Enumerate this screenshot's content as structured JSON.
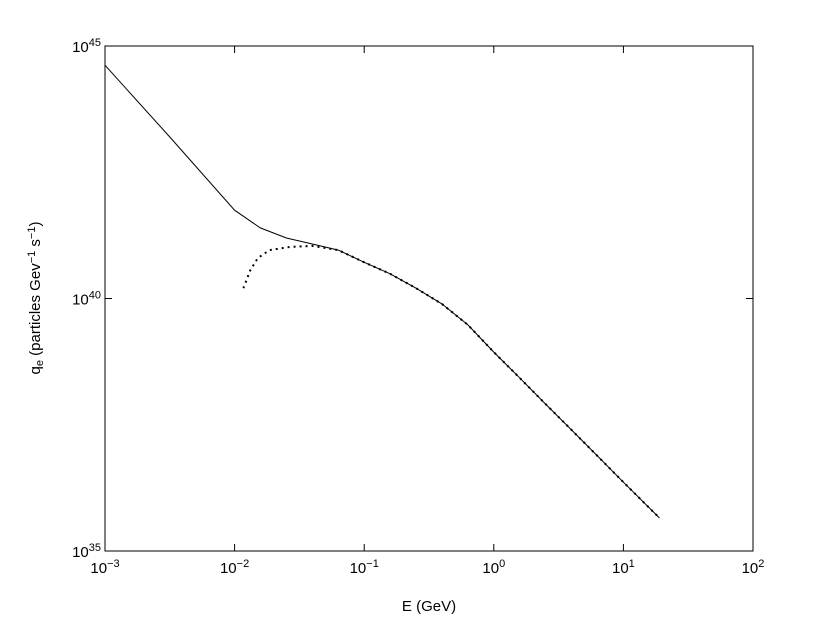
{
  "chart_data": {
    "type": "line",
    "x_label": "E (GeV)",
    "y_label_parts": [
      {
        "text": "q"
      },
      {
        "text": "e",
        "script": "sub"
      },
      {
        "text": " (particles Gev"
      },
      {
        "text": "−1",
        "script": "sup"
      },
      {
        "text": " s"
      },
      {
        "text": "−1",
        "script": "sup"
      },
      {
        "text": ")"
      }
    ],
    "xlog": true,
    "ylog": true,
    "xlim": [
      0.001,
      100
    ],
    "ylim": [
      1e+35,
      1e+45
    ],
    "xticks": [
      {
        "value": 0.001,
        "label": "10",
        "power": "−3"
      },
      {
        "value": 0.01,
        "label": "10",
        "power": "−2"
      },
      {
        "value": 0.1,
        "label": "10",
        "power": "−1"
      },
      {
        "value": 1,
        "label": "10",
        "power": "0"
      },
      {
        "value": 10,
        "label": "10",
        "power": "1"
      },
      {
        "value": 100,
        "label": "10",
        "power": "2"
      }
    ],
    "yticks": [
      {
        "value": 1e+35,
        "label": "10",
        "power": "35"
      },
      {
        "value": 1e+40,
        "label": "10",
        "power": "40"
      },
      {
        "value": 1e+45,
        "label": "10",
        "power": "45"
      }
    ],
    "series": [
      {
        "color": "#000000",
        "style": "solid",
        "x": [
          0.001,
          0.00316,
          0.01,
          0.0158,
          0.0251,
          0.0398,
          0.0631,
          0.1,
          0.158,
          0.251,
          0.398,
          0.631,
          1,
          1.58,
          2.51,
          3.98,
          6.31,
          10,
          19
        ],
        "values": [
          4.17e+44,
          1.58e+43,
          5.6e+41,
          2.5e+41,
          1.58e+41,
          1.2e+41,
          9.1e+40,
          5.2e+40,
          3.1e+40,
          1.6e+40,
          7.8e+39,
          3e+39,
          8.7e+38,
          2.7e+38,
          8.1e+37,
          2.5e+37,
          7.6e+36,
          2.3e+36,
          4.5e+35
        ]
      },
      {
        "color": "#000000",
        "style": "dotted",
        "x": [
          0.0117,
          0.0132,
          0.0151,
          0.0186,
          0.0269,
          0.0398,
          0.0631,
          0.1,
          0.158,
          0.251,
          0.398,
          0.631,
          1,
          1.58,
          2.51,
          3.98,
          6.31,
          10,
          19
        ],
        "values": [
          1.6e+40,
          3.6e+40,
          6.3e+40,
          9.1e+40,
          1.05e+41,
          1.1e+41,
          9.1e+40,
          5.2e+40,
          3.1e+40,
          1.6e+40,
          7.8e+39,
          3e+39,
          8.7e+38,
          2.7e+38,
          8.1e+37,
          2.5e+37,
          7.6e+36,
          2.3e+36,
          4.5e+35
        ]
      }
    ]
  }
}
